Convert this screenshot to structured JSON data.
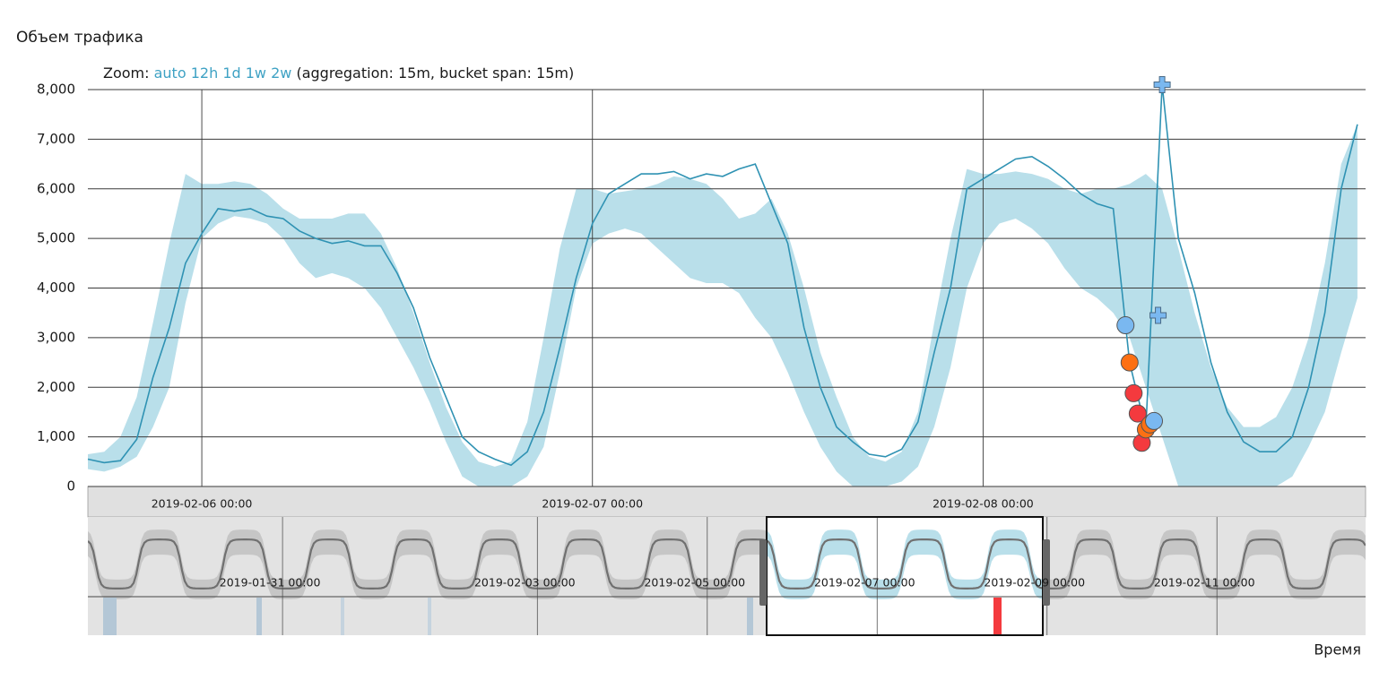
{
  "chart_data": {
    "type": "line",
    "title": "Объем трафика",
    "xlabel": "Время",
    "zoom": {
      "label": "Zoom:",
      "options": [
        "auto",
        "12h",
        "1d",
        "1w",
        "2w"
      ],
      "note": "(aggregation: 15m, bucket span: 15m)"
    },
    "x": [
      "2019-02-05 17:00",
      "2019-02-05 18:00",
      "2019-02-05 19:00",
      "2019-02-05 20:00",
      "2019-02-05 21:00",
      "2019-02-05 22:00",
      "2019-02-05 23:00",
      "2019-02-06 00:00",
      "2019-02-06 01:00",
      "2019-02-06 02:00",
      "2019-02-06 03:00",
      "2019-02-06 04:00",
      "2019-02-06 05:00",
      "2019-02-06 06:00",
      "2019-02-06 07:00",
      "2019-02-06 08:00",
      "2019-02-06 09:00",
      "2019-02-06 10:00",
      "2019-02-06 11:00",
      "2019-02-06 12:00",
      "2019-02-06 13:00",
      "2019-02-06 14:00",
      "2019-02-06 15:00",
      "2019-02-06 16:00",
      "2019-02-06 17:00",
      "2019-02-06 18:00",
      "2019-02-06 19:00",
      "2019-02-06 20:00",
      "2019-02-06 21:00",
      "2019-02-06 22:00",
      "2019-02-06 23:00",
      "2019-02-07 00:00",
      "2019-02-07 01:00",
      "2019-02-07 02:00",
      "2019-02-07 03:00",
      "2019-02-07 04:00",
      "2019-02-07 05:00",
      "2019-02-07 06:00",
      "2019-02-07 07:00",
      "2019-02-07 08:00",
      "2019-02-07 09:00",
      "2019-02-07 10:00",
      "2019-02-07 11:00",
      "2019-02-07 12:00",
      "2019-02-07 13:00",
      "2019-02-07 14:00",
      "2019-02-07 15:00",
      "2019-02-07 16:00",
      "2019-02-07 17:00",
      "2019-02-07 18:00",
      "2019-02-07 19:00",
      "2019-02-07 20:00",
      "2019-02-07 21:00",
      "2019-02-07 22:00",
      "2019-02-07 23:00",
      "2019-02-08 00:00",
      "2019-02-08 01:00",
      "2019-02-08 02:00",
      "2019-02-08 03:00",
      "2019-02-08 04:00",
      "2019-02-08 05:00",
      "2019-02-08 06:00",
      "2019-02-08 07:00",
      "2019-02-08 08:00",
      "2019-02-08 09:00",
      "2019-02-08 10:00",
      "2019-02-08 11:00",
      "2019-02-08 12:00",
      "2019-02-08 13:00",
      "2019-02-08 14:00",
      "2019-02-08 15:00",
      "2019-02-08 16:00",
      "2019-02-08 17:00",
      "2019-02-08 18:00",
      "2019-02-08 19:00",
      "2019-02-08 20:00",
      "2019-02-08 21:00",
      "2019-02-08 22:00",
      "2019-02-08 23:00"
    ],
    "values": [
      550,
      480,
      520,
      950,
      2200,
      3200,
      4500,
      5100,
      5600,
      5550,
      5600,
      5450,
      5400,
      5150,
      5000,
      4900,
      4950,
      4850,
      4850,
      4300,
      3600,
      2600,
      1800,
      1000,
      700,
      550,
      430,
      700,
      1500,
      2800,
      4200,
      5300,
      5900,
      6100,
      6300,
      6300,
      6350,
      6200,
      6300,
      6250,
      6400,
      6500,
      5700,
      4900,
      3200,
      2000,
      1200,
      900,
      650,
      600,
      750,
      1300,
      2700,
      4000,
      6000,
      6200,
      6400,
      6600,
      6650,
      6450,
      6200,
      5900,
      5700,
      5600,
      2500,
      1150,
      8100,
      5000,
      3900,
      2500,
      1500,
      900,
      700,
      700,
      1000,
      2000,
      3500,
      6000,
      7300
    ],
    "color": "#2f92b3",
    "band_upper": [
      650,
      700,
      1000,
      1800,
      3300,
      4900,
      6300,
      6100,
      6100,
      6150,
      6100,
      5900,
      5600,
      5400,
      5400,
      5400,
      5500,
      5500,
      5100,
      4400,
      3500,
      2500,
      1600,
      900,
      500,
      400,
      500,
      1300,
      3000,
      4800,
      6000,
      6000,
      5900,
      5950,
      6000,
      6100,
      6250,
      6200,
      6100,
      5800,
      5400,
      5500,
      5800,
      5100,
      4000,
      2700,
      1800,
      1000,
      600,
      500,
      700,
      1500,
      3300,
      5000,
      6400,
      6300,
      6300,
      6350,
      6300,
      6200,
      6000,
      5900,
      6000,
      6000,
      6100,
      6300,
      6000,
      4800,
      3500,
      2400,
      1600,
      1200,
      1200,
      1400,
      2000,
      3000,
      4500,
      6500,
      7300
    ],
    "band_lower": [
      350,
      300,
      400,
      600,
      1200,
      2000,
      3700,
      5000,
      5300,
      5450,
      5400,
      5300,
      5000,
      4500,
      4200,
      4300,
      4200,
      4000,
      3600,
      3000,
      2400,
      1700,
      900,
      200,
      0,
      0,
      0,
      200,
      800,
      2300,
      4000,
      4900,
      5100,
      5200,
      5100,
      4800,
      4500,
      4200,
      4100,
      4100,
      3900,
      3400,
      3000,
      2300,
      1500,
      800,
      300,
      0,
      0,
      0,
      100,
      400,
      1200,
      2400,
      4000,
      4900,
      5300,
      5400,
      5200,
      4900,
      4400,
      4000,
      3800,
      3500,
      3000,
      2000,
      1000,
      0,
      0,
      0,
      0,
      0,
      0,
      0,
      200,
      800,
      1500,
      2700,
      3800
    ],
    "band_color": "#b9dfea",
    "anomalies": {
      "x": [
        "2019-02-08 08:45",
        "2019-02-08 09:00",
        "2019-02-08 09:15",
        "2019-02-08 09:30",
        "2019-02-08 09:45",
        "2019-02-08 10:00",
        "2019-02-08 10:15",
        "2019-02-08 10:30"
      ],
      "values": [
        3250,
        2500,
        1880,
        1470,
        880,
        1150,
        1250,
        1320
      ],
      "colors": [
        "#7ab8f0",
        "#fd7013",
        "#f43a3e",
        "#f43a3e",
        "#f43a3e",
        "#fd7013",
        "#fd7013",
        "#7ab8f0"
      ]
    },
    "markers": {
      "x": [
        "2019-02-08 10:45",
        "2019-02-08 11:00"
      ],
      "values": [
        3450,
        8100
      ],
      "color": "#7ab8f0"
    },
    "xlim": [
      "2019-02-05 17:00",
      "2019-02-08 23:30"
    ],
    "xticks": [
      "2019-02-06 00:00",
      "2019-02-07 00:00",
      "2019-02-08 00:00"
    ],
    "ylim": [
      0,
      8000
    ],
    "yticks": [
      0,
      {
        "value": 1000,
        "label": "1,000"
      },
      {
        "value": 2000,
        "label": "2,000"
      },
      {
        "value": 3000,
        "label": "3,000"
      },
      {
        "value": 4000,
        "label": "4,000"
      },
      {
        "value": 5000,
        "label": "5,000"
      },
      {
        "value": 6000,
        "label": "6,000"
      },
      {
        "value": 7000,
        "label": "7,000"
      },
      {
        "value": 8000,
        "label": "8,000"
      }
    ],
    "grid": true,
    "context": {
      "xlim": [
        "2019-01-28 17:00",
        "2019-02-12 18:00"
      ],
      "xticks": [
        "2019-01-31 00:00",
        "2019-02-03 00:00",
        "2019-02-05 00:00",
        "2019-02-07 00:00",
        "2019-02-09 00:00",
        "2019-02-11 00:00"
      ]
    }
  }
}
